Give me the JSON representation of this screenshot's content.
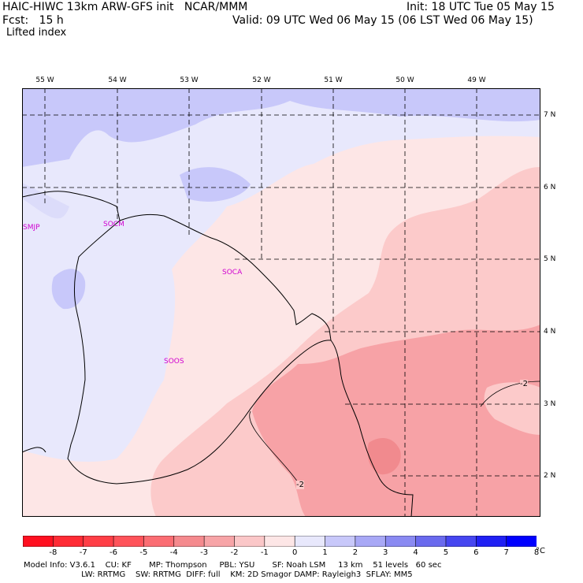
{
  "header": {
    "title": "HAIC-HIWC 13km ARW-GFS init   NCAR/MMM",
    "init": "Init: 18 UTC Tue 05 May 15",
    "fcst": "Fcst:   15 h",
    "valid": "Valid: 09 UTC Wed 06 May 15 (06 LST Wed 06 May 15)",
    "field": "Lifted index"
  },
  "map": {
    "longitude_labels": [
      "55 W",
      "54 W",
      "53 W",
      "52 W",
      "51 W",
      "50 W",
      "49 W"
    ],
    "latitude_labels": [
      "7 N",
      "6 N",
      "5 N",
      "4 N",
      "3 N",
      "2 N"
    ],
    "stations": [
      "SMJP",
      "SOCM",
      "SOCA",
      "SOOS"
    ],
    "contour_labels": [
      "-2",
      "-2"
    ],
    "colors": {
      "border": "#000000",
      "grid": "#000000",
      "station": "#d000d0",
      "lifted_index_0_1": "#e8e8fc",
      "lifted_index_1_2": "#c8c8fa",
      "lifted_index_m1_0": "#fde6e6",
      "lifted_index_m2_m1": "#fccaca",
      "lifted_index_m3_m2": "#f7a2a6",
      "lifted_index_m4_m3": "#f18a8e"
    }
  },
  "colorbar": {
    "ticks": [
      "-8",
      "-7",
      "-6",
      "-5",
      "-4",
      "-3",
      "-2",
      "-1",
      "0",
      "1",
      "2",
      "3",
      "4",
      "5",
      "6",
      "7",
      "8"
    ],
    "unit": "°C",
    "colors": [
      "#ff1020",
      "#ff2b35",
      "#ff3e46",
      "#ff535a",
      "#fb6d73",
      "#f58a8e",
      "#f7a4a7",
      "#fbc7c8",
      "#fde6e6",
      "#e8e8fc",
      "#c8c8fa",
      "#a8a8f6",
      "#8a8af2",
      "#6a6aee",
      "#4646f0",
      "#2020f4",
      "#0000ff"
    ]
  },
  "footer": {
    "line1": "Model Info: V3.6.1    CU: KF       MP: Thompson     PBL: YSU       SF: Noah LSM     13 km    51 levels   60 sec",
    "line2": "                       LW: RRTMG    SW: RRTMG  DIFF: full    KM: 2D Smagor DAMP: Rayleigh3  SFLAY: MM5"
  }
}
